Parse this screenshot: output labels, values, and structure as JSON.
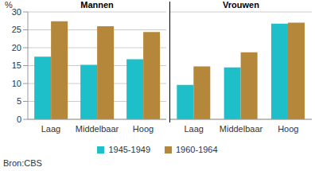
{
  "chart_data": [
    {
      "type": "bar",
      "title": "Mannen",
      "ylabel": "%",
      "categories": [
        "Laag",
        "Middelbaar",
        "Hoog"
      ],
      "series": [
        {
          "name": "1945-1949",
          "color": "#1fbfc9",
          "values": [
            17.5,
            15.2,
            16.8
          ]
        },
        {
          "name": "1960-1964",
          "color": "#b5873a",
          "values": [
            27.4,
            26,
            24.4
          ]
        }
      ],
      "ylim": [
        0,
        30
      ],
      "yticks": [
        0,
        5,
        10,
        15,
        20,
        25,
        30
      ],
      "grid": true,
      "legend": "bottom"
    },
    {
      "type": "bar",
      "title": "Vrouwen",
      "categories": [
        "Laag",
        "Middelbaar",
        "Hoog"
      ],
      "series": [
        {
          "name": "1945-1949",
          "color": "#1fbfc9",
          "values": [
            9.6,
            14.5,
            26.7
          ]
        },
        {
          "name": "1960-1964",
          "color": "#b5873a",
          "values": [
            14.8,
            18.7,
            27
          ]
        }
      ],
      "ylim": [
        0,
        30
      ],
      "yticks": [
        0,
        5,
        10,
        15,
        20,
        25,
        30
      ],
      "grid": true,
      "tick_labels": "x",
      "legend": "bottom"
    }
  ],
  "source": "Bron:CBS"
}
